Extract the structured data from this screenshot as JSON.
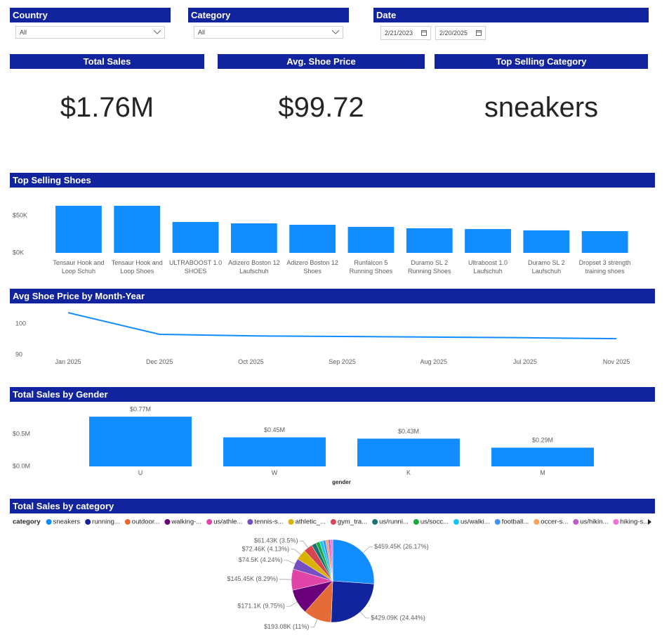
{
  "filters": [
    {
      "label": "Country",
      "value": "All"
    },
    {
      "label": "Category",
      "value": "All"
    },
    {
      "label": "Date",
      "start": "2/21/2023",
      "end": "2/20/2025"
    }
  ],
  "kpis": [
    {
      "label": "Total Sales",
      "value": "$1.76M"
    },
    {
      "label": "Avg. Shoe Price",
      "value": "$99.72"
    },
    {
      "label": "Top Selling Category",
      "value": "sneakers"
    }
  ],
  "chart_data": [
    {
      "type": "bar",
      "title": "Top Selling Shoes",
      "categories": [
        "Tensaur Hook and Loop Schuh",
        "Tensaur Hook and Loop Shoes",
        "ULTRABOOST 1.0 SHOES",
        "Adizero Boston 12 Laufschuh",
        "Adizero Boston 12 Shoes",
        "Runfalcon 5 Running Shoes",
        "Duramo SL 2 Running Shoes",
        "Ultraboost 1.0 Laufschuh",
        "Duramo SL 2 Laufschuh",
        "Dropset 3 strength training shoes"
      ],
      "values": [
        63200,
        63200,
        41500,
        39600,
        37700,
        34900,
        33000,
        32000,
        30200,
        29200
      ],
      "color": "#118dff",
      "ylim": [
        0,
        66000
      ],
      "yticks": [
        {
          "value": 0,
          "label": "$0K"
        },
        {
          "value": 50000,
          "label": "$50K"
        }
      ],
      "grid": false
    },
    {
      "type": "line",
      "title": "Avg Shoe Price by Month-Year",
      "categories": [
        "Jan 2025",
        "Dec 2025",
        "Oct 2025",
        "Sep 2025",
        "Aug 2025",
        "Jul 2025",
        "Nov 2025"
      ],
      "values": [
        103.6,
        96.6,
        96.1,
        95.9,
        95.7,
        95.5,
        95.2
      ],
      "color": "#118dff",
      "ylim": [
        89,
        105
      ],
      "yticks": [
        90,
        100
      ],
      "grid": false
    },
    {
      "type": "bar",
      "title": "Total Sales by Gender",
      "x_label": "gender",
      "categories": [
        "U",
        "W",
        "K",
        "M"
      ],
      "values": [
        770000,
        450000,
        430000,
        290000
      ],
      "value_labels": [
        "$0.77M",
        "$0.45M",
        "$0.43M",
        "$0.29M"
      ],
      "color": "#118dff",
      "ylim": [
        0,
        850000
      ],
      "yticks": [
        {
          "value": 0,
          "label": "$0.0M"
        },
        {
          "value": 500000,
          "label": "$0.5M"
        }
      ],
      "grid": false
    },
    {
      "type": "pie",
      "title": "Total Sales by category",
      "legend_title": "category",
      "categories": [
        "sneakers",
        "running...",
        "outdoor...",
        "walking-...",
        "us/athle...",
        "tennis-s...",
        "athletic_...",
        "gym_tra...",
        "us/runni...",
        "us/socc...",
        "us/walki...",
        "football...",
        "occer-s...",
        "us/hikin...",
        "hiking-s..."
      ],
      "values": [
        459.45,
        429.09,
        193.08,
        171.1,
        145.45,
        74.5,
        72.46,
        61.43,
        31.6,
        26.3,
        22.8,
        19.3,
        17.6,
        15.8,
        15.4
      ],
      "value_labels": [
        "$459.45K (26.17%)",
        "$429.09K (24.44%)",
        "$193.08K (11%)",
        "$171.1K (9.75%)",
        "$145.45K (8.29%)",
        "$74.5K (4.24%)",
        "$72.46K (4.13%)",
        "$61.43K (3.5%)",
        null,
        null,
        null,
        null,
        null,
        null,
        null
      ],
      "colors": [
        "#118dff",
        "#12239e",
        "#e66c37",
        "#6b007b",
        "#e044a7",
        "#744ec2",
        "#d9b300",
        "#d64550",
        "#197278",
        "#1aab40",
        "#15c6f4",
        "#4092ff",
        "#ffa058",
        "#be5dc9",
        "#f472d0"
      ]
    }
  ]
}
